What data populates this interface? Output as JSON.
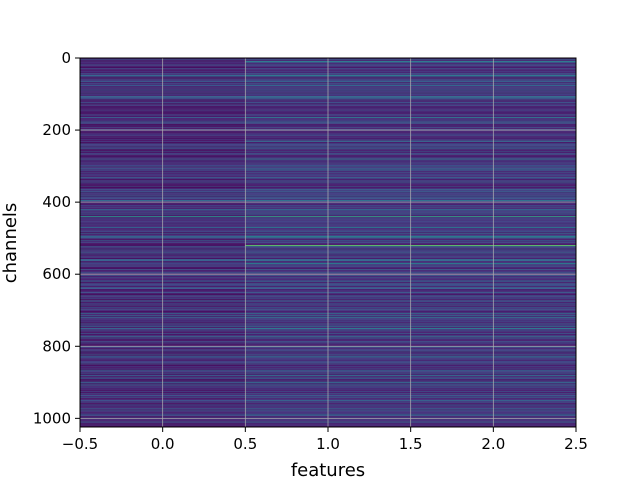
{
  "chart_data": {
    "type": "heatmap",
    "title": "",
    "xlabel": "features",
    "ylabel": "channels",
    "xlim": [
      -0.5,
      2.5
    ],
    "ylim": [
      1024,
      0
    ],
    "x_ticks": [
      -0.5,
      0.0,
      0.5,
      1.0,
      1.5,
      2.0,
      2.5
    ],
    "x_tick_labels": [
      "−0.5",
      "0.0",
      "0.5",
      "1.0",
      "1.5",
      "2.0",
      "2.5"
    ],
    "y_ticks": [
      0,
      200,
      400,
      600,
      800,
      1000
    ],
    "y_tick_labels": [
      "0",
      "200",
      "400",
      "600",
      "800",
      "1000"
    ],
    "grid": true,
    "colormap": "viridis",
    "columns": [
      0,
      1,
      2
    ],
    "rows": 1024,
    "value_range": [
      0,
      1
    ],
    "highlight_rows": [
      {
        "channel": 10,
        "values": [
          0.05,
          0.62,
          0.62
        ]
      },
      {
        "channel": 48,
        "values": [
          0.45,
          0.55,
          0.55
        ]
      },
      {
        "channel": 75,
        "values": [
          0.35,
          0.45,
          0.45
        ]
      },
      {
        "channel": 165,
        "values": [
          0.42,
          0.55,
          0.55
        ]
      },
      {
        "channel": 230,
        "values": [
          0.1,
          0.5,
          0.5
        ]
      },
      {
        "channel": 280,
        "values": [
          0.4,
          0.55,
          0.55
        ]
      },
      {
        "channel": 310,
        "values": [
          0.35,
          0.5,
          0.5
        ]
      },
      {
        "channel": 365,
        "values": [
          0.35,
          0.45,
          0.45
        ]
      },
      {
        "channel": 395,
        "values": [
          0.45,
          0.5,
          0.5
        ]
      },
      {
        "channel": 440,
        "values": [
          0.7,
          0.78,
          0.78
        ]
      },
      {
        "channel": 470,
        "values": [
          0.4,
          0.5,
          0.5
        ]
      },
      {
        "channel": 495,
        "values": [
          0.45,
          0.6,
          0.6
        ]
      },
      {
        "channel": 520,
        "values": [
          0.05,
          0.95,
          0.95
        ]
      },
      {
        "channel": 560,
        "values": [
          0.45,
          0.5,
          0.5
        ]
      },
      {
        "channel": 570,
        "values": [
          0.3,
          0.6,
          0.6
        ]
      },
      {
        "channel": 580,
        "values": [
          0.1,
          0.2,
          0.2
        ]
      },
      {
        "channel": 650,
        "values": [
          0.35,
          0.4,
          0.4
        ]
      },
      {
        "channel": 720,
        "values": [
          0.4,
          0.5,
          0.5
        ]
      },
      {
        "channel": 750,
        "values": [
          0.42,
          0.55,
          0.55
        ]
      },
      {
        "channel": 800,
        "values": [
          0.35,
          0.45,
          0.45
        ]
      },
      {
        "channel": 880,
        "values": [
          0.4,
          0.5,
          0.5
        ]
      },
      {
        "channel": 950,
        "values": [
          0.35,
          0.45,
          0.45
        ]
      },
      {
        "channel": 990,
        "values": [
          0.4,
          0.5,
          0.5
        ]
      }
    ]
  }
}
